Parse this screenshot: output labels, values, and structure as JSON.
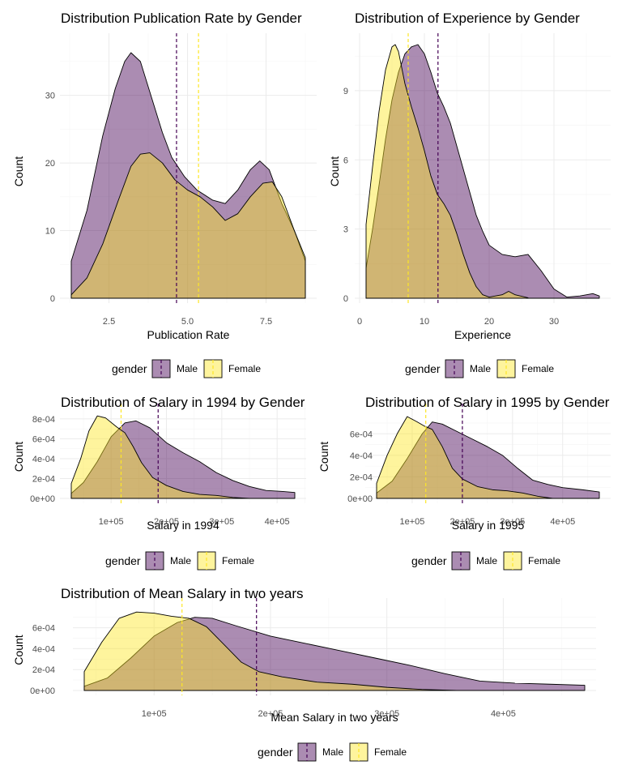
{
  "colors": {
    "male_fill": "#440154",
    "male_line": "#440154",
    "female_fill": "#FDE725",
    "female_line": "#FDE725",
    "fill_opacity": 0.45
  },
  "legend_items": [
    {
      "label": "Male",
      "color": "#440154"
    },
    {
      "label": "Female",
      "color": "#FDE725"
    }
  ],
  "chart_data": [
    {
      "type": "area",
      "title": "Distribution Publication Rate by Gender",
      "xlabel": "Publication Rate",
      "ylabel": "Count",
      "xlim": [
        1.3,
        8.75
      ],
      "ylim": [
        0,
        37.5
      ],
      "xticks": [
        2.5,
        5.0,
        7.5
      ],
      "xtick_labels": [
        "2.5",
        "5.0",
        "7.5"
      ],
      "yticks": [
        0,
        10,
        20,
        30
      ],
      "ytick_labels": [
        "0",
        "10",
        "20",
        "30"
      ],
      "legend_title": "gender",
      "legend_position": "bottom",
      "grid": true,
      "series": [
        {
          "name": "Male",
          "mean": 4.65,
          "x": [
            1.3,
            1.8,
            2.3,
            2.7,
            3.0,
            3.2,
            3.5,
            3.8,
            4.2,
            4.5,
            4.9,
            5.3,
            5.8,
            6.2,
            6.6,
            7.0,
            7.3,
            7.6,
            8.0,
            8.4,
            8.75
          ],
          "y": [
            5.5,
            13,
            24,
            31,
            35,
            36.3,
            35,
            30.5,
            24.5,
            20.8,
            18,
            16,
            14.5,
            14,
            16,
            19,
            20.3,
            19,
            14,
            10,
            5.5
          ]
        },
        {
          "name": "Female",
          "mean": 5.35,
          "x": [
            1.3,
            1.8,
            2.3,
            2.8,
            3.2,
            3.5,
            3.8,
            4.2,
            4.6,
            5.0,
            5.4,
            5.8,
            6.2,
            6.6,
            7.0,
            7.4,
            7.7,
            8.0,
            8.4,
            8.75
          ],
          "y": [
            0.5,
            3,
            8,
            14.5,
            19.5,
            21.3,
            21.5,
            20,
            17.5,
            16,
            15,
            13.5,
            11.5,
            12.5,
            15,
            17,
            17.2,
            15,
            10,
            6
          ]
        }
      ]
    },
    {
      "type": "area",
      "title": "Distribution of Experience by Gender",
      "xlabel": "Experience",
      "ylabel": "Count",
      "xlim": [
        1,
        37
      ],
      "ylim": [
        0,
        11
      ],
      "xticks": [
        0,
        10,
        20,
        30
      ],
      "xtick_labels": [
        "0",
        "10",
        "20",
        "30"
      ],
      "yticks": [
        0,
        3,
        6,
        9
      ],
      "ytick_labels": [
        "0",
        "3",
        "6",
        "9"
      ],
      "legend_title": "gender",
      "legend_position": "bottom",
      "grid": true,
      "series": [
        {
          "name": "Male",
          "mean": 12.1,
          "x": [
            1,
            2,
            3,
            4,
            5,
            6,
            7,
            8,
            9,
            10,
            11,
            12,
            13,
            14,
            15,
            16,
            17,
            18,
            19,
            20,
            22,
            24,
            26,
            28,
            30,
            32,
            34,
            36,
            37
          ],
          "y": [
            1.3,
            3.0,
            4.9,
            6.9,
            8.6,
            9.8,
            10.6,
            10.9,
            11.0,
            10.6,
            9.8,
            8.9,
            8.3,
            7.6,
            6.6,
            5.6,
            4.6,
            3.6,
            2.9,
            2.3,
            1.9,
            1.8,
            1.9,
            1.2,
            0.4,
            0.05,
            0.1,
            0.2,
            0.1
          ]
        },
        {
          "name": "Female",
          "mean": 7.5,
          "x": [
            1,
            2,
            3,
            4,
            5,
            5.5,
            6,
            7,
            8,
            9,
            10,
            11,
            12,
            13,
            14,
            15,
            16,
            17,
            18,
            19,
            20,
            22,
            23,
            24,
            26
          ],
          "y": [
            3.2,
            5.7,
            8.1,
            9.9,
            10.9,
            11.0,
            10.7,
            9.3,
            8.3,
            7.4,
            6.4,
            5.3,
            4.5,
            4.1,
            3.6,
            2.8,
            1.9,
            1.1,
            0.5,
            0.15,
            0.05,
            0.15,
            0.3,
            0.15,
            0.02
          ]
        }
      ]
    },
    {
      "type": "area",
      "title": "Distribution of Salary in 1994 by Gender",
      "xlabel": "Salary in 1994",
      "ylabel": "Count",
      "xlim": [
        28000,
        432000
      ],
      "ylim": [
        0,
        0.00084
      ],
      "xticks": [
        100000,
        200000,
        300000,
        400000
      ],
      "xtick_labels": [
        "1e+05",
        "2e+05",
        "3e+05",
        "4e+05"
      ],
      "yticks": [
        0,
        0.0002,
        0.0004,
        0.0006,
        0.0008
      ],
      "ytick_labels": [
        "0e+00",
        "2e-04",
        "4e-04",
        "6e-04",
        "8e-04"
      ],
      "legend_title": "gender",
      "legend_position": "bottom",
      "grid": true,
      "series": [
        {
          "name": "Male",
          "mean": 185000,
          "x": [
            28000,
            50000,
            75000,
            100000,
            125000,
            145000,
            170000,
            200000,
            230000,
            260000,
            290000,
            320000,
            350000,
            380000,
            410000,
            432000
          ],
          "y": [
            5e-05,
            0.00016,
            0.00037,
            0.00062,
            0.00076,
            0.00078,
            0.00071,
            0.00056,
            0.00046,
            0.00037,
            0.00026,
            0.00018,
            0.00012,
            8e-05,
            7e-05,
            6e-05
          ]
        },
        {
          "name": "Female",
          "mean": 118000,
          "x": [
            28000,
            45000,
            60000,
            75000,
            90000,
            110000,
            125000,
            140000,
            155000,
            175000,
            200000,
            230000,
            260000,
            290000,
            320000,
            350000
          ],
          "y": [
            0.00015,
            0.0004,
            0.00068,
            0.00083,
            0.00081,
            0.00072,
            0.00066,
            0.00052,
            0.00036,
            0.00021,
            0.00013,
            7e-05,
            4e-05,
            3e-05,
            1e-05,
            0.0
          ]
        }
      ]
    },
    {
      "type": "area",
      "title": "Distribution of Salary in 1995 by Gender",
      "xlabel": "Salary in 1995",
      "ylabel": "Count",
      "xlim": [
        29000,
        473000
      ],
      "ylim": [
        0,
        0.000775
      ],
      "xticks": [
        100000,
        200000,
        300000,
        400000
      ],
      "xtick_labels": [
        "1e+05",
        "2e+05",
        "3e+05",
        "4e+05"
      ],
      "yticks": [
        0,
        0.0002,
        0.0004,
        0.0006
      ],
      "ytick_labels": [
        "0e+00",
        "2e-04",
        "4e-04",
        "6e-04"
      ],
      "legend_title": "gender",
      "legend_position": "bottom",
      "grid": true,
      "series": [
        {
          "name": "Male",
          "mean": 200000,
          "x": [
            29000,
            60000,
            90000,
            120000,
            140000,
            160000,
            190000,
            220000,
            250000,
            280000,
            310000,
            340000,
            370000,
            400000,
            440000,
            473000
          ],
          "y": [
            5e-05,
            0.00016,
            0.00037,
            0.0006,
            0.00071,
            0.00069,
            0.00062,
            0.00055,
            0.00048,
            0.0004,
            0.00028,
            0.00017,
            0.00013,
            0.0001,
            8e-05,
            6e-05
          ]
        },
        {
          "name": "Female",
          "mean": 127000,
          "x": [
            29000,
            50000,
            70000,
            90000,
            110000,
            125000,
            140000,
            160000,
            180000,
            200000,
            230000,
            260000,
            290000,
            320000,
            350000,
            380000
          ],
          "y": [
            0.00014,
            0.0004,
            0.0006,
            0.00076,
            0.00071,
            0.00067,
            0.00064,
            0.00048,
            0.00028,
            0.00018,
            0.00011,
            8e-05,
            7e-05,
            5e-05,
            2e-05,
            0.0
          ]
        }
      ]
    },
    {
      "type": "area",
      "title": "Distribution of Mean Salary in two years",
      "xlabel": "Mean Salary in two years",
      "ylabel": "Count",
      "xlim": [
        40000,
        470000
      ],
      "ylim": [
        0,
        0.000775
      ],
      "xticks": [
        100000,
        200000,
        300000,
        400000
      ],
      "xtick_labels": [
        "1e+05",
        "2e+05",
        "3e+05",
        "4e+05"
      ],
      "yticks": [
        0,
        0.0002,
        0.0004,
        0.0006
      ],
      "ytick_labels": [
        "0e+00",
        "2e-04",
        "4e-04",
        "6e-04"
      ],
      "legend_title": "gender",
      "legend_position": "bottom",
      "grid": true,
      "series": [
        {
          "name": "Male",
          "mean": 188000,
          "x": [
            40000,
            60000,
            80000,
            100000,
            120000,
            135000,
            150000,
            170000,
            200000,
            230000,
            260000,
            290000,
            320000,
            350000,
            380000,
            410000,
            440000,
            470000
          ],
          "y": [
            4e-05,
            0.00012,
            0.00031,
            0.00052,
            0.00065,
            0.0007,
            0.00069,
            0.00062,
            0.00052,
            0.00045,
            0.00038,
            0.00031,
            0.00024,
            0.00016,
            9e-05,
            7e-05,
            6e-05,
            5e-05
          ]
        },
        {
          "name": "Female",
          "mean": 124000,
          "x": [
            40000,
            55000,
            70000,
            85000,
            100000,
            115000,
            130000,
            145000,
            160000,
            175000,
            190000,
            210000,
            240000,
            270000,
            300000,
            330000,
            360000
          ],
          "y": [
            0.00018,
            0.00046,
            0.00069,
            0.00075,
            0.00074,
            0.00071,
            0.00069,
            0.00061,
            0.00044,
            0.00027,
            0.00018,
            0.00013,
            8e-05,
            6e-05,
            3e-05,
            1e-05,
            0.0
          ]
        }
      ]
    }
  ]
}
